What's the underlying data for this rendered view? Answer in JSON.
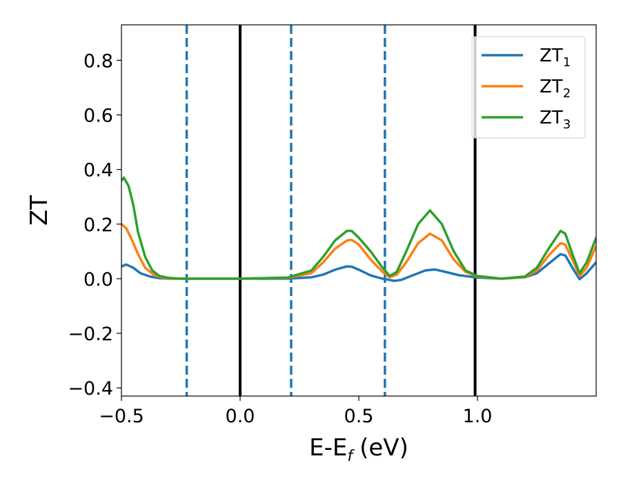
{
  "chart_data": {
    "type": "line",
    "xlabel": "E-E",
    "xlabel_sub": "f",
    "xlabel_unit": "(eV)",
    "ylabel": "ZT",
    "xlim": [
      -0.5,
      1.5
    ],
    "ylim": [
      -0.43,
      0.93
    ],
    "xticks": [
      -0.5,
      0.0,
      0.5,
      1.0
    ],
    "xtick_labels": [
      "−0.5",
      "0.0",
      "0.5",
      "1.0"
    ],
    "yticks": [
      -0.4,
      -0.2,
      0.0,
      0.2,
      0.4,
      0.6,
      0.8
    ],
    "ytick_labels": [
      "−0.4",
      "−0.2",
      "0.0",
      "0.2",
      "0.4",
      "0.6",
      "0.8"
    ],
    "grid": false,
    "legend_position": "top-right",
    "vlines": [
      {
        "x": -0.225,
        "style": "dashed",
        "color": "#1f77b4"
      },
      {
        "x": 0.0,
        "style": "solid",
        "color": "#000000"
      },
      {
        "x": 0.215,
        "style": "dashed",
        "color": "#1f77b4"
      },
      {
        "x": 0.61,
        "style": "dashed",
        "color": "#1f77b4"
      },
      {
        "x": 0.99,
        "style": "solid",
        "color": "#000000"
      }
    ],
    "series": [
      {
        "name": "ZT",
        "subscript": "1",
        "color": "#1f77b4",
        "x": [
          -0.5,
          -0.48,
          -0.45,
          -0.42,
          -0.38,
          -0.34,
          -0.3,
          -0.2,
          0.0,
          0.2,
          0.3,
          0.35,
          0.4,
          0.45,
          0.47,
          0.5,
          0.55,
          0.6,
          0.62,
          0.65,
          0.68,
          0.72,
          0.78,
          0.82,
          0.86,
          0.92,
          1.0,
          1.1,
          1.2,
          1.25,
          1.3,
          1.35,
          1.37,
          1.4,
          1.43,
          1.46,
          1.5
        ],
        "y": [
          0.045,
          0.052,
          0.04,
          0.02,
          0.008,
          0.002,
          0.0,
          0.0,
          0.0,
          0.0,
          0.005,
          0.015,
          0.033,
          0.045,
          0.044,
          0.033,
          0.012,
          0.0,
          -0.003,
          -0.008,
          -0.004,
          0.01,
          0.03,
          0.034,
          0.026,
          0.013,
          0.004,
          0.0,
          0.005,
          0.02,
          0.055,
          0.09,
          0.085,
          0.04,
          -0.002,
          0.02,
          0.06
        ]
      },
      {
        "name": "ZT",
        "subscript": "2",
        "color": "#ff7f0e",
        "x": [
          -0.5,
          -0.48,
          -0.46,
          -0.43,
          -0.4,
          -0.36,
          -0.32,
          -0.28,
          -0.2,
          0.0,
          0.2,
          0.3,
          0.35,
          0.4,
          0.45,
          0.47,
          0.5,
          0.55,
          0.6,
          0.63,
          0.66,
          0.7,
          0.75,
          0.8,
          0.85,
          0.9,
          0.95,
          1.0,
          1.1,
          1.2,
          1.25,
          1.3,
          1.35,
          1.37,
          1.4,
          1.43,
          1.46,
          1.5
        ],
        "y": [
          0.2,
          0.185,
          0.15,
          0.09,
          0.04,
          0.012,
          0.003,
          0.0,
          0.0,
          0.0,
          0.003,
          0.02,
          0.06,
          0.11,
          0.14,
          0.142,
          0.125,
          0.07,
          0.025,
          0.005,
          0.015,
          0.06,
          0.13,
          0.165,
          0.14,
          0.07,
          0.025,
          0.008,
          0.0,
          0.006,
          0.03,
          0.085,
          0.13,
          0.125,
          0.07,
          0.01,
          0.04,
          0.12
        ]
      },
      {
        "name": "ZT",
        "subscript": "3",
        "color": "#2ca02c",
        "x": [
          -0.5,
          -0.49,
          -0.47,
          -0.45,
          -0.43,
          -0.4,
          -0.37,
          -0.34,
          -0.3,
          -0.25,
          -0.2,
          0.0,
          0.2,
          0.3,
          0.35,
          0.4,
          0.45,
          0.47,
          0.5,
          0.55,
          0.6,
          0.63,
          0.66,
          0.7,
          0.75,
          0.8,
          0.85,
          0.9,
          0.95,
          1.0,
          1.1,
          1.2,
          1.25,
          1.3,
          1.35,
          1.37,
          1.4,
          1.43,
          1.46,
          1.5
        ],
        "y": [
          0.36,
          0.37,
          0.34,
          0.27,
          0.17,
          0.08,
          0.03,
          0.01,
          0.003,
          0.0,
          0.0,
          0.0,
          0.004,
          0.03,
          0.08,
          0.14,
          0.175,
          0.175,
          0.15,
          0.1,
          0.04,
          0.01,
          0.025,
          0.1,
          0.2,
          0.25,
          0.2,
          0.1,
          0.03,
          0.01,
          0.0,
          0.008,
          0.04,
          0.11,
          0.175,
          0.165,
          0.09,
          0.02,
          0.06,
          0.15
        ]
      }
    ]
  }
}
